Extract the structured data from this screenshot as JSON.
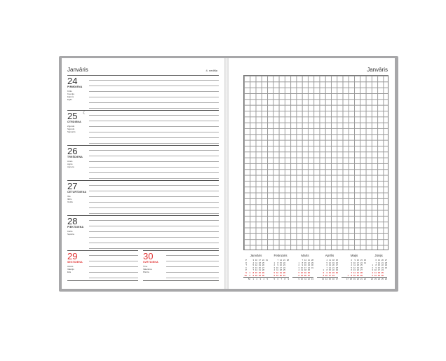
{
  "left_page": {
    "month": "Janvāris",
    "week": "4. nedēļa",
    "days": [
      {
        "num": "24",
        "weekday": "PIRMDIENA",
        "names": [
          "Krišs",
          "Ksenija",
          "Eglons",
          "Egīls"
        ]
      },
      {
        "num": "25",
        "weekday": "OTRDIENA",
        "names": [
          "Zigurds",
          "Sigurds",
          "Sigvards"
        ],
        "moon": "☾"
      },
      {
        "num": "26",
        "weekday": "TREŠDIENA",
        "names": [
          "Ansis",
          "Agnis",
          "Agneta"
        ]
      },
      {
        "num": "27",
        "weekday": "CETURTDIENA",
        "names": [
          "Ilze",
          "Ildze",
          "Izolde"
        ]
      },
      {
        "num": "28",
        "weekday": "PIEKTDIENA",
        "names": [
          "Kārlis",
          "Spodra"
        ]
      },
      {
        "num": "29",
        "weekday": "SESTDIENA",
        "names": [
          "Aivars",
          "Valērijs",
          "Eila"
        ]
      },
      {
        "num": "30",
        "weekday": "SVĒTDIENA",
        "names": [
          "Tīna",
          "Valentīna",
          "Pārsla"
        ]
      }
    ]
  },
  "right_page": {
    "month": "Janvāris",
    "weekday_initials": [
      "P",
      "O",
      "T",
      "C",
      "P",
      "S",
      "Sv"
    ],
    "mini_calendars": [
      {
        "month": "Janvāris",
        "first_weekday": 6,
        "days": 31,
        "weeks": [
          "52",
          "1",
          "2",
          "3",
          "4",
          "5"
        ]
      },
      {
        "month": "Februāris",
        "first_weekday": 2,
        "days": 28,
        "weeks": [
          "5",
          "6",
          "7",
          "8",
          "9"
        ]
      },
      {
        "month": "Marts",
        "first_weekday": 2,
        "days": 31,
        "weeks": [
          "9",
          "10",
          "11",
          "12",
          "13"
        ]
      },
      {
        "month": "Aprīlis",
        "first_weekday": 5,
        "days": 30,
        "weeks": [
          "13",
          "14",
          "15",
          "16",
          "17"
        ]
      },
      {
        "month": "Maijs",
        "first_weekday": 7,
        "days": 31,
        "weeks": [
          "17",
          "18",
          "19",
          "20",
          "21",
          "22"
        ]
      },
      {
        "month": "Jūnijs",
        "first_weekday": 3,
        "days": 30,
        "weeks": [
          "22",
          "23",
          "24",
          "25",
          "26"
        ]
      }
    ]
  },
  "colors": {
    "accent": "#e03030",
    "cover": "#a7a7a9"
  }
}
